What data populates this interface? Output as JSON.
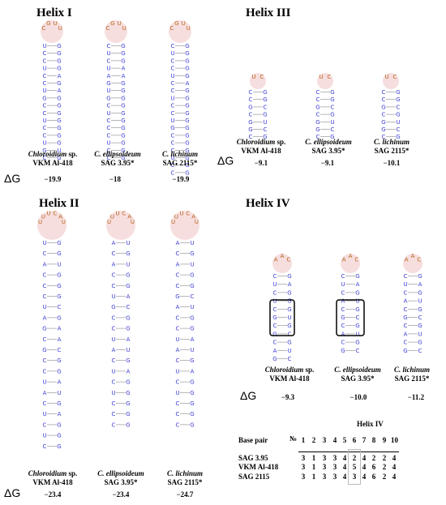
{
  "panels": {
    "helix1": {
      "title": "Helix I",
      "dg_symbol": "ΔG",
      "captions": [
        {
          "italic": "Chloroidium",
          "rest": " sp.",
          "line2": "VKM Al-418",
          "dg": "−19.9"
        },
        {
          "italic": "C. ellipsoideum",
          "rest": "",
          "line2": "SAG 3.95*",
          "dg": "−18"
        },
        {
          "italic": "C. lichinum",
          "rest": "",
          "line2": "SAG 2115*",
          "dg": "−19.9"
        }
      ]
    },
    "helix2": {
      "title": "Helix II",
      "dg_symbol": "ΔG",
      "captions": [
        {
          "italic": "Chloroidium",
          "rest": " sp.",
          "line2": "VKM Al-418",
          "dg": "−23.4"
        },
        {
          "italic": "C. ellipsoideum",
          "rest": "",
          "line2": "SAG 3.95*",
          "dg": "−23.4"
        },
        {
          "italic": "C. lichinum",
          "rest": "",
          "line2": "SAG 2115*",
          "dg": "−24.7"
        }
      ]
    },
    "helix3": {
      "title": "Helix III",
      "dg_symbol": "ΔG",
      "captions": [
        {
          "italic": "Chloroidium",
          "rest": " sp.",
          "line2": "VKM Al-418",
          "dg": "−9.1"
        },
        {
          "italic": "C. ellipsoideum",
          "rest": "",
          "line2": "SAG 3.95*",
          "dg": "−9.1"
        },
        {
          "italic": "C. lichinum",
          "rest": "",
          "line2": "SAG 2115*",
          "dg": "−10.1"
        }
      ]
    },
    "helix4": {
      "title": "Helix IV",
      "dg_symbol": "ΔG",
      "captions": [
        {
          "italic": "Chloroidium",
          "rest": " sp.",
          "line2": "VKM Al-418",
          "dg": "−9.3"
        },
        {
          "italic": "C. ellipsoideum",
          "rest": "",
          "line2": "SAG 3.95*",
          "dg": "−10.0"
        },
        {
          "italic": "C. lichinum",
          "rest": "",
          "line2": "SAG 2115*",
          "dg": "−11.2"
        }
      ]
    }
  },
  "structures": {
    "helix1": [
      {
        "loop": [
          "C",
          "G",
          "U",
          "U"
        ],
        "pairs": [
          [
            "U",
            "G"
          ],
          [
            "C",
            "G"
          ],
          [
            "C",
            "G"
          ],
          [
            "U",
            "G"
          ],
          [
            "C",
            "A"
          ],
          [
            "C",
            "G"
          ],
          [
            "U",
            "A"
          ],
          [
            "G",
            "G"
          ],
          [
            "C",
            "G"
          ],
          [
            "C",
            "G"
          ],
          [
            "U",
            "G"
          ],
          [
            "C",
            "G"
          ],
          [
            "C",
            "G"
          ],
          [
            "U",
            "G"
          ],
          [
            "G",
            "U"
          ],
          [
            "C",
            "G"
          ]
        ]
      },
      {
        "loop": [
          "C",
          "G",
          "U",
          "U"
        ],
        "pairs": [
          [
            "C",
            "G"
          ],
          [
            "U",
            "G"
          ],
          [
            "C",
            "G"
          ],
          [
            "U",
            "A"
          ],
          [
            "A",
            "A"
          ],
          [
            "G",
            "G"
          ],
          [
            "U",
            "G"
          ],
          [
            "G",
            "G"
          ],
          [
            "C",
            "G"
          ],
          [
            "U",
            "G"
          ],
          [
            "C",
            "G"
          ],
          [
            "C",
            "G"
          ],
          [
            "C",
            "G"
          ],
          [
            "U",
            "G"
          ],
          [
            "C",
            "G"
          ],
          [
            "C",
            "G"
          ]
        ]
      },
      {
        "loop": [
          "C",
          "G",
          "U",
          "U"
        ],
        "pairs": [
          [
            "C",
            "G"
          ],
          [
            "U",
            "G"
          ],
          [
            "C",
            "G"
          ],
          [
            "C",
            "G"
          ],
          [
            "U",
            "G"
          ],
          [
            "C",
            "A"
          ],
          [
            "C",
            "G"
          ],
          [
            "U",
            "G"
          ],
          [
            "C",
            "G"
          ],
          [
            "C",
            "G"
          ],
          [
            "U",
            "G"
          ],
          [
            "G",
            "G"
          ],
          [
            "C",
            "G"
          ],
          [
            "C",
            "G"
          ],
          [
            "C",
            "G"
          ],
          [
            "U",
            "G"
          ],
          [
            "C",
            "G"
          ],
          [
            "C",
            "G"
          ]
        ]
      }
    ],
    "helix2": [
      {
        "loop": [
          "U",
          "U",
          "U",
          "C",
          "A",
          "U"
        ],
        "pairs": [
          [
            "U",
            "G"
          ],
          [
            "C",
            "G"
          ],
          [
            "A",
            "U"
          ],
          [
            "C",
            "G"
          ],
          [
            "C",
            "G"
          ],
          [
            "C",
            "G"
          ],
          [
            "U",
            "C"
          ],
          [
            "A",
            "G"
          ],
          [
            "G",
            "A"
          ],
          [
            "C",
            "A"
          ],
          [
            "G",
            "C"
          ],
          [
            "C",
            "G"
          ],
          [
            "C",
            "G"
          ],
          [
            "U",
            "A"
          ],
          [
            "A",
            "U"
          ],
          [
            "C",
            "G"
          ],
          [
            "U",
            "A"
          ],
          [
            "C",
            "G"
          ],
          [
            "U",
            "G"
          ],
          [
            "C",
            "G"
          ]
        ]
      },
      {
        "loop": [
          "U",
          "U",
          "U",
          "C",
          "A",
          "U"
        ],
        "pairs": [
          [
            "A",
            "U"
          ],
          [
            "C",
            "G"
          ],
          [
            "A",
            "U"
          ],
          [
            "C",
            "G"
          ],
          [
            "C",
            "G"
          ],
          [
            "U",
            "A"
          ],
          [
            "G",
            "C"
          ],
          [
            "C",
            "G"
          ],
          [
            "C",
            "G"
          ],
          [
            "U",
            "A"
          ],
          [
            "A",
            "U"
          ],
          [
            "C",
            "G"
          ],
          [
            "U",
            "A"
          ],
          [
            "C",
            "G"
          ],
          [
            "U",
            "G"
          ],
          [
            "C",
            "G"
          ],
          [
            "C",
            "G"
          ],
          [
            "C",
            "G"
          ]
        ]
      },
      {
        "loop": [
          "U",
          "U",
          "U",
          "C",
          "A",
          "U"
        ],
        "pairs": [
          [
            "A",
            "U"
          ],
          [
            "C",
            "G"
          ],
          [
            "A",
            "U"
          ],
          [
            "C",
            "G"
          ],
          [
            "C",
            "G"
          ],
          [
            "G",
            "C"
          ],
          [
            "A",
            "U"
          ],
          [
            "C",
            "G"
          ],
          [
            "C",
            "G"
          ],
          [
            "U",
            "A"
          ],
          [
            "A",
            "U"
          ],
          [
            "C",
            "G"
          ],
          [
            "U",
            "A"
          ],
          [
            "C",
            "G"
          ],
          [
            "U",
            "G"
          ],
          [
            "C",
            "G"
          ],
          [
            "C",
            "G"
          ],
          [
            "C",
            "G"
          ]
        ]
      }
    ],
    "helix3": [
      {
        "loop": [
          "U",
          "C"
        ],
        "pairs": [
          [
            "C",
            "G"
          ],
          [
            "C",
            "G"
          ],
          [
            "G",
            "C"
          ],
          [
            "C",
            "G"
          ],
          [
            "G",
            "U"
          ],
          [
            "G",
            "C"
          ],
          [
            "C",
            "G"
          ]
        ]
      },
      {
        "loop": [
          "U",
          "C"
        ],
        "pairs": [
          [
            "C",
            "G"
          ],
          [
            "C",
            "G"
          ],
          [
            "G",
            "C"
          ],
          [
            "C",
            "G"
          ],
          [
            "G",
            "U"
          ],
          [
            "G",
            "C"
          ],
          [
            "C",
            "G"
          ]
        ]
      },
      {
        "loop": [
          "U",
          "C"
        ],
        "pairs": [
          [
            "C",
            "G"
          ],
          [
            "C",
            "G"
          ],
          [
            "G",
            "C"
          ],
          [
            "C",
            "G"
          ],
          [
            "G",
            "U"
          ],
          [
            "G",
            "C"
          ],
          [
            "C",
            "G"
          ]
        ]
      }
    ],
    "helix4": [
      {
        "loop": [
          "A",
          "A",
          "C"
        ],
        "pairs": [
          [
            "C",
            "G"
          ],
          [
            "U",
            "A"
          ],
          [
            "C",
            "G"
          ],
          [
            "U",
            "G"
          ],
          [
            "C",
            "G"
          ],
          [
            "G",
            "U"
          ],
          [
            "C",
            "G"
          ],
          [
            "G",
            "C"
          ],
          [
            "C",
            "G"
          ],
          [
            "A",
            "U"
          ],
          [
            "G",
            "C"
          ]
        ]
      },
      {
        "loop": [
          "A",
          "A",
          "C"
        ],
        "pairs": [
          [
            "C",
            "G"
          ],
          [
            "U",
            "A"
          ],
          [
            "C",
            "G"
          ],
          [
            "A",
            "U"
          ],
          [
            "C",
            "G"
          ],
          [
            "G",
            "C"
          ],
          [
            "C",
            "G"
          ],
          [
            "A",
            "U"
          ],
          [
            "C",
            "G"
          ],
          [
            "G",
            "C"
          ]
        ]
      },
      {
        "loop": [
          "A",
          "A",
          "C"
        ],
        "pairs": [
          [
            "C",
            "G"
          ],
          [
            "U",
            "A"
          ],
          [
            "C",
            "G"
          ],
          [
            "A",
            "U"
          ],
          [
            "C",
            "G"
          ],
          [
            "G",
            "C"
          ],
          [
            "C",
            "G"
          ],
          [
            "A",
            "U"
          ],
          [
            "C",
            "G"
          ],
          [
            "G",
            "C"
          ]
        ]
      }
    ]
  },
  "table": {
    "title": "Helix IV",
    "header_label": "Base pair",
    "no_symbol": "№",
    "columns": [
      "1",
      "2",
      "3",
      "4",
      "5",
      "6",
      "7",
      "8",
      "9",
      "10"
    ],
    "rows": [
      {
        "name": "SAG 3.95",
        "values": [
          "3",
          "1",
          "3",
          "3",
          "4",
          "2",
          "4",
          "2",
          "2",
          "4"
        ]
      },
      {
        "name": "VKM Al-418",
        "values": [
          "3",
          "1",
          "3",
          "3",
          "4",
          "5",
          "4",
          "6",
          "2",
          "4"
        ]
      },
      {
        "name": "SAG 2115",
        "values": [
          "3",
          "1",
          "3",
          "3",
          "4",
          "3",
          "4",
          "6",
          "2",
          "4"
        ]
      }
    ]
  },
  "colors": {
    "paired_nt": "#3b3bd6",
    "loop_nt": "#b5621a",
    "loop_bg": "#f7dede",
    "bond": "#888888"
  }
}
